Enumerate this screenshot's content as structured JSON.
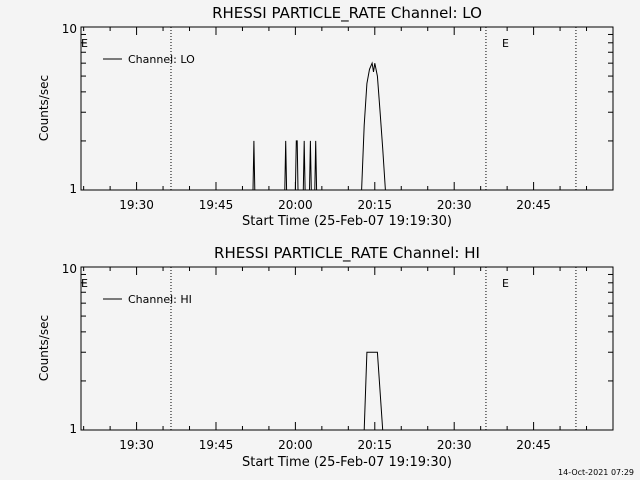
{
  "footer_timestamp": "14-Oct-2021 07:29",
  "chart_data": [
    {
      "type": "line",
      "title": "RHESSI PARTICLE_RATE Channel: LO",
      "xlabel": "Start Time (25-Feb-07 19:19:30)",
      "ylabel": "Counts/sec",
      "x_scale": "time",
      "x_range": [
        "19:19:30",
        "21:00:00"
      ],
      "xticks": [
        "19:30",
        "19:45",
        "20:00",
        "20:15",
        "20:30",
        "20:45"
      ],
      "y_scale": "log",
      "ylim": [
        1,
        10
      ],
      "yticks": [
        "1",
        "10"
      ],
      "grid": false,
      "legend": {
        "position": "top-left",
        "entries": [
          "Channel: LO"
        ]
      },
      "markers": [
        {
          "label": "E",
          "time": "19:19:30",
          "style": "label"
        },
        {
          "label": "",
          "time": "19:36:30",
          "style": "dotted"
        },
        {
          "label": "E",
          "time": "20:36:00",
          "style": "dotted"
        },
        {
          "label": "",
          "time": "20:53:00",
          "style": "dotted"
        }
      ],
      "series": [
        {
          "name": "Channel: LO",
          "points": [
            [
              "19:19:30",
              1
            ],
            [
              "19:52:00",
              1
            ],
            [
              "19:52:10",
              2
            ],
            [
              "19:52:20",
              1
            ],
            [
              "19:58:00",
              1
            ],
            [
              "19:58:10",
              2
            ],
            [
              "19:58:20",
              1
            ],
            [
              "20:00:00",
              1
            ],
            [
              "20:00:10",
              2
            ],
            [
              "20:00:20",
              2
            ],
            [
              "20:00:30",
              1
            ],
            [
              "20:01:30",
              1
            ],
            [
              "20:01:40",
              2
            ],
            [
              "20:01:50",
              1
            ],
            [
              "20:02:40",
              1
            ],
            [
              "20:02:50",
              2
            ],
            [
              "20:03:00",
              1
            ],
            [
              "20:03:40",
              1
            ],
            [
              "20:03:50",
              2
            ],
            [
              "20:04:00",
              1
            ],
            [
              "20:12:30",
              1
            ],
            [
              "20:13:00",
              2.5
            ],
            [
              "20:13:30",
              4.5
            ],
            [
              "20:14:00",
              5.5
            ],
            [
              "20:14:30",
              6
            ],
            [
              "20:14:45",
              5.3
            ],
            [
              "20:15:00",
              6
            ],
            [
              "20:15:30",
              5
            ],
            [
              "20:16:00",
              3
            ],
            [
              "20:16:30",
              1.8
            ],
            [
              "20:17:00",
              1
            ],
            [
              "21:00:00",
              1
            ]
          ]
        }
      ]
    },
    {
      "type": "line",
      "title": "RHESSI PARTICLE_RATE Channel: HI",
      "xlabel": "Start Time (25-Feb-07 19:19:30)",
      "ylabel": "Counts/sec",
      "x_scale": "time",
      "x_range": [
        "19:19:30",
        "21:00:00"
      ],
      "xticks": [
        "19:30",
        "19:45",
        "20:00",
        "20:15",
        "20:30",
        "20:45"
      ],
      "y_scale": "log",
      "ylim": [
        1,
        10
      ],
      "yticks": [
        "1",
        "10"
      ],
      "grid": false,
      "legend": {
        "position": "top-left",
        "entries": [
          "Channel: HI"
        ]
      },
      "markers": [
        {
          "label": "E",
          "time": "19:19:30",
          "style": "label"
        },
        {
          "label": "",
          "time": "19:36:30",
          "style": "dotted"
        },
        {
          "label": "E",
          "time": "20:36:00",
          "style": "dotted"
        },
        {
          "label": "",
          "time": "20:53:00",
          "style": "dotted"
        }
      ],
      "series": [
        {
          "name": "Channel: HI",
          "points": [
            [
              "19:19:30",
              1
            ],
            [
              "20:13:00",
              1
            ],
            [
              "20:13:30",
              3
            ],
            [
              "20:15:30",
              3
            ],
            [
              "20:16:30",
              1
            ],
            [
              "21:00:00",
              1
            ]
          ]
        }
      ]
    }
  ]
}
